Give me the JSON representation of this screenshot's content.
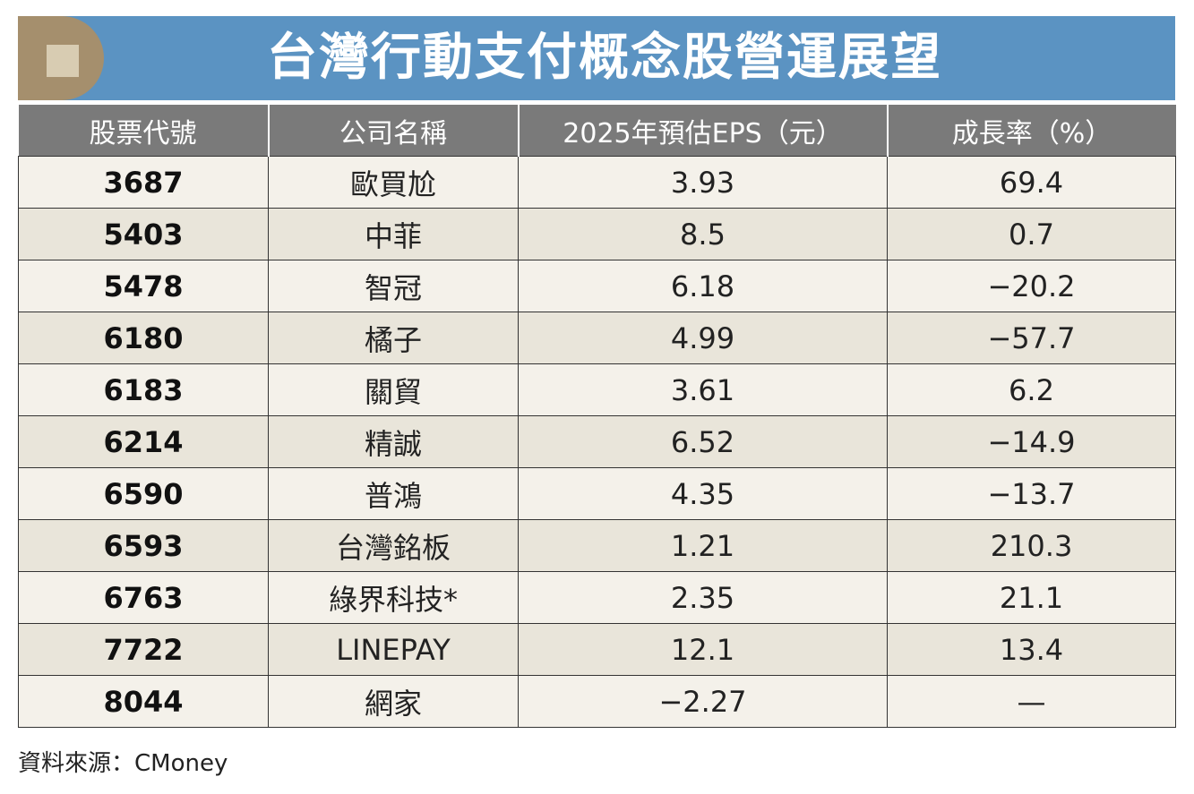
{
  "title": "台灣行動支付概念股營運展望",
  "headers": [
    "股票代號",
    "公司名稱",
    "2025年預估EPS（元）",
    "成長率（%）"
  ],
  "rows": [
    {
      "code": "3687",
      "name": "歐買尬",
      "eps": "3.93",
      "growth": "69.4"
    },
    {
      "code": "5403",
      "name": "中菲",
      "eps": "8.5",
      "growth": "0.7"
    },
    {
      "code": "5478",
      "name": "智冠",
      "eps": "6.18",
      "growth": "−20.2"
    },
    {
      "code": "6180",
      "name": "橘子",
      "eps": "4.99",
      "growth": "−57.7"
    },
    {
      "code": "6183",
      "name": "關貿",
      "eps": "3.61",
      "growth": "6.2"
    },
    {
      "code": "6214",
      "name": "精誠",
      "eps": "6.52",
      "growth": "−14.9"
    },
    {
      "code": "6590",
      "name": "普鴻",
      "eps": "4.35",
      "growth": "−13.7"
    },
    {
      "code": "6593",
      "name": "台灣銘板",
      "eps": "1.21",
      "growth": "210.3"
    },
    {
      "code": "6763",
      "name": "綠界科技*",
      "eps": "2.35",
      "growth": "21.1"
    },
    {
      "code": "7722",
      "name": "LINEPAY",
      "eps": "12.1",
      "growth": "13.4"
    },
    {
      "code": "8044",
      "name": "網家",
      "eps": "−2.27",
      "growth": "—"
    }
  ],
  "source": "資料來源：CMoney",
  "colors": {
    "title_bar": "#5b93c2",
    "badge": "#a58f6d",
    "header": "#7a7a7a"
  }
}
